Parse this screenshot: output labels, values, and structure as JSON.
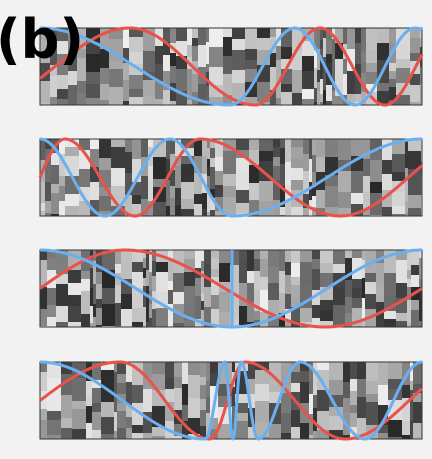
{
  "label": "(b)"
}
